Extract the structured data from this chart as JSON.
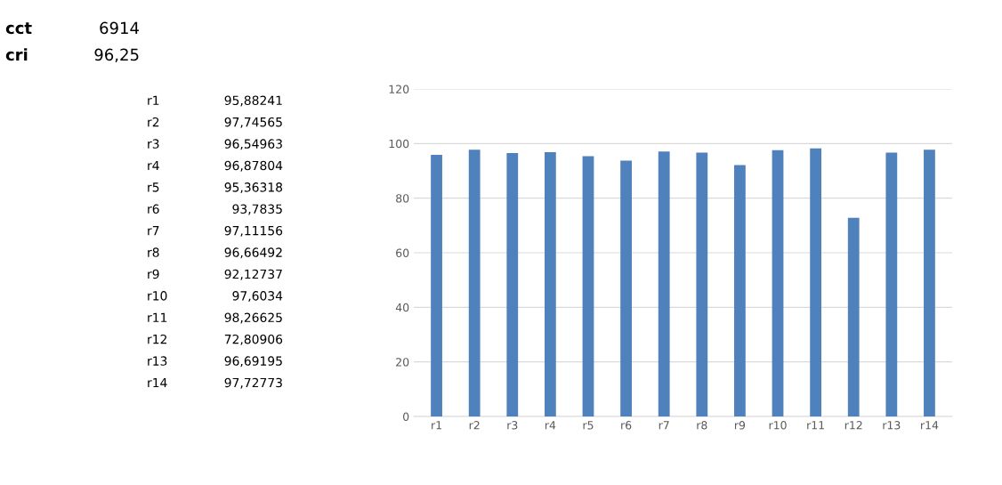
{
  "chart_data": {
    "type": "bar",
    "categories": [
      "r1",
      "r2",
      "r3",
      "r4",
      "r5",
      "r6",
      "r7",
      "r8",
      "r9",
      "r10",
      "r11",
      "r12",
      "r13",
      "r14"
    ],
    "values": [
      95.88241,
      97.74565,
      96.54963,
      96.87804,
      95.36318,
      93.7835,
      97.11156,
      96.66492,
      92.12737,
      97.6034,
      98.26625,
      72.80906,
      96.69195,
      97.72773
    ],
    "color": "#4f81bd",
    "ylim": [
      0,
      120
    ],
    "yticks": [
      0,
      20,
      40,
      60,
      80,
      100,
      120
    ],
    "grid": "y",
    "annotations": [
      "cct",
      "6914",
      "cri",
      "96,25",
      "95,88241",
      "97,74565",
      "96,54963",
      "96,87804",
      "95,36318",
      "93,7835",
      "97,11156",
      "96,66492",
      "92,12737",
      "97,6034",
      "98,26625",
      "72,80906",
      "96,69195",
      "97,72773"
    ]
  }
}
